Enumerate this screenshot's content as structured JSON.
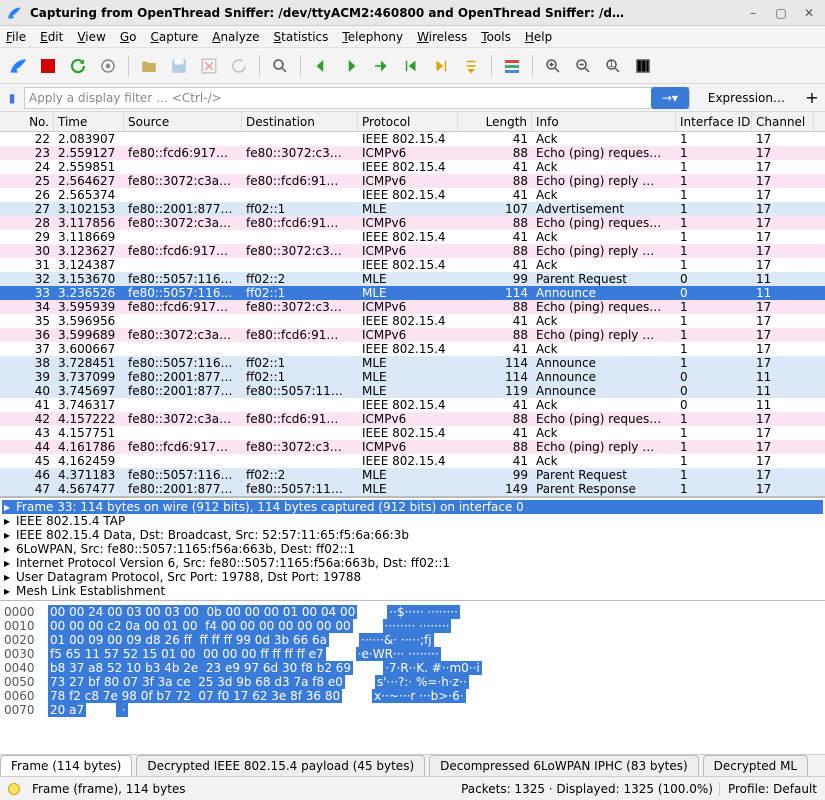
{
  "title": "Capturing from OpenThread Sniffer: /dev/ttyACM2:460800 and OpenThread Sniffer: /d…",
  "menu": [
    "File",
    "Edit",
    "View",
    "Go",
    "Capture",
    "Analyze",
    "Statistics",
    "Telephony",
    "Wireless",
    "Tools",
    "Help"
  ],
  "filter_placeholder": "Apply a display filter … <Ctrl-/>",
  "filter_expr": "Expression…",
  "columns": [
    "No.",
    "Time",
    "Source",
    "Destination",
    "Protocol",
    "Length",
    "Info",
    "Interface ID",
    "Channel"
  ],
  "rows": [
    {
      "bg": "white",
      "no": "22",
      "time": "2.083907",
      "src": "",
      "dst": "",
      "proto": "IEEE 802.15.4",
      "len": "41",
      "info": "Ack",
      "if": "1",
      "ch": "17"
    },
    {
      "bg": "pink",
      "no": "23",
      "time": "2.559127",
      "src": "fe80::fcd6:917…",
      "dst": "fe80::3072:c3…",
      "proto": "ICMPv6",
      "len": "88",
      "info": "Echo (ping) reques…",
      "if": "1",
      "ch": "17"
    },
    {
      "bg": "white",
      "no": "24",
      "time": "2.559851",
      "src": "",
      "dst": "",
      "proto": "IEEE 802.15.4",
      "len": "41",
      "info": "Ack",
      "if": "1",
      "ch": "17"
    },
    {
      "bg": "pink",
      "no": "25",
      "time": "2.564627",
      "src": "fe80::3072:c3a…",
      "dst": "fe80::fcd6:91…",
      "proto": "ICMPv6",
      "len": "88",
      "info": "Echo (ping) reply …",
      "if": "1",
      "ch": "17"
    },
    {
      "bg": "white",
      "no": "26",
      "time": "2.565374",
      "src": "",
      "dst": "",
      "proto": "IEEE 802.15.4",
      "len": "41",
      "info": "Ack",
      "if": "1",
      "ch": "17"
    },
    {
      "bg": "blue",
      "no": "27",
      "time": "3.102153",
      "src": "fe80::2001:877…",
      "dst": "ff02::1",
      "proto": "MLE",
      "len": "107",
      "info": "Advertisement",
      "if": "1",
      "ch": "17"
    },
    {
      "bg": "pink",
      "no": "28",
      "time": "3.117856",
      "src": "fe80::3072:c3a…",
      "dst": "fe80::fcd6:91…",
      "proto": "ICMPv6",
      "len": "88",
      "info": "Echo (ping) reques…",
      "if": "1",
      "ch": "17"
    },
    {
      "bg": "white",
      "no": "29",
      "time": "3.118669",
      "src": "",
      "dst": "",
      "proto": "IEEE 802.15.4",
      "len": "41",
      "info": "Ack",
      "if": "1",
      "ch": "17"
    },
    {
      "bg": "pink",
      "no": "30",
      "time": "3.123627",
      "src": "fe80::fcd6:917…",
      "dst": "fe80::3072:c3…",
      "proto": "ICMPv6",
      "len": "88",
      "info": "Echo (ping) reply …",
      "if": "1",
      "ch": "17"
    },
    {
      "bg": "white",
      "no": "31",
      "time": "3.124387",
      "src": "",
      "dst": "",
      "proto": "IEEE 802.15.4",
      "len": "41",
      "info": "Ack",
      "if": "1",
      "ch": "17"
    },
    {
      "bg": "blue",
      "no": "32",
      "time": "3.153670",
      "src": "fe80::5057:116…",
      "dst": "ff02::2",
      "proto": "MLE",
      "len": "99",
      "info": "Parent Request",
      "if": "0",
      "ch": "11"
    },
    {
      "bg": "sel",
      "no": "33",
      "time": "3.236526",
      "src": "fe80::5057:116…",
      "dst": "ff02::1",
      "proto": "MLE",
      "len": "114",
      "info": "Announce",
      "if": "0",
      "ch": "11"
    },
    {
      "bg": "pink",
      "no": "34",
      "time": "3.595939",
      "src": "fe80::fcd6:917…",
      "dst": "fe80::3072:c3…",
      "proto": "ICMPv6",
      "len": "88",
      "info": "Echo (ping) reques…",
      "if": "1",
      "ch": "17"
    },
    {
      "bg": "white",
      "no": "35",
      "time": "3.596956",
      "src": "",
      "dst": "",
      "proto": "IEEE 802.15.4",
      "len": "41",
      "info": "Ack",
      "if": "1",
      "ch": "17"
    },
    {
      "bg": "pink",
      "no": "36",
      "time": "3.599689",
      "src": "fe80::3072:c3a…",
      "dst": "fe80::fcd6:91…",
      "proto": "ICMPv6",
      "len": "88",
      "info": "Echo (ping) reply …",
      "if": "1",
      "ch": "17"
    },
    {
      "bg": "white",
      "no": "37",
      "time": "3.600667",
      "src": "",
      "dst": "",
      "proto": "IEEE 802.15.4",
      "len": "41",
      "info": "Ack",
      "if": "1",
      "ch": "17"
    },
    {
      "bg": "blue",
      "no": "38",
      "time": "3.728451",
      "src": "fe80::5057:116…",
      "dst": "ff02::1",
      "proto": "MLE",
      "len": "114",
      "info": "Announce",
      "if": "1",
      "ch": "17"
    },
    {
      "bg": "blue",
      "no": "39",
      "time": "3.737099",
      "src": "fe80::2001:877…",
      "dst": "ff02::1",
      "proto": "MLE",
      "len": "114",
      "info": "Announce",
      "if": "0",
      "ch": "11"
    },
    {
      "bg": "blue",
      "no": "40",
      "time": "3.745697",
      "src": "fe80::2001:877…",
      "dst": "fe80::5057:11…",
      "proto": "MLE",
      "len": "119",
      "info": "Announce",
      "if": "0",
      "ch": "11"
    },
    {
      "bg": "white",
      "no": "41",
      "time": "3.746317",
      "src": "",
      "dst": "",
      "proto": "IEEE 802.15.4",
      "len": "41",
      "info": "Ack",
      "if": "0",
      "ch": "11"
    },
    {
      "bg": "pink",
      "no": "42",
      "time": "4.157222",
      "src": "fe80::3072:c3a…",
      "dst": "fe80::fcd6:91…",
      "proto": "ICMPv6",
      "len": "88",
      "info": "Echo (ping) reques…",
      "if": "1",
      "ch": "17"
    },
    {
      "bg": "white",
      "no": "43",
      "time": "4.157751",
      "src": "",
      "dst": "",
      "proto": "IEEE 802.15.4",
      "len": "41",
      "info": "Ack",
      "if": "1",
      "ch": "17"
    },
    {
      "bg": "pink",
      "no": "44",
      "time": "4.161786",
      "src": "fe80::fcd6:917…",
      "dst": "fe80::3072:c3…",
      "proto": "ICMPv6",
      "len": "88",
      "info": "Echo (ping) reply …",
      "if": "1",
      "ch": "17"
    },
    {
      "bg": "white",
      "no": "45",
      "time": "4.162459",
      "src": "",
      "dst": "",
      "proto": "IEEE 802.15.4",
      "len": "41",
      "info": "Ack",
      "if": "1",
      "ch": "17"
    },
    {
      "bg": "blue",
      "no": "46",
      "time": "4.371183",
      "src": "fe80::5057:116…",
      "dst": "ff02::2",
      "proto": "MLE",
      "len": "99",
      "info": "Parent Request",
      "if": "1",
      "ch": "17"
    },
    {
      "bg": "blue",
      "no": "47",
      "time": "4.567477",
      "src": "fe80::2001:877…",
      "dst": "fe80::5057:11…",
      "proto": "MLE",
      "len": "149",
      "info": "Parent Response",
      "if": "1",
      "ch": "17"
    }
  ],
  "details": [
    {
      "sel": true,
      "txt": "Frame 33: 114 bytes on wire (912 bits), 114 bytes captured (912 bits) on interface 0"
    },
    {
      "sel": false,
      "txt": "IEEE 802.15.4 TAP"
    },
    {
      "sel": false,
      "txt": "IEEE 802.15.4 Data, Dst: Broadcast, Src: 52:57:11:65:f5:6a:66:3b"
    },
    {
      "sel": false,
      "txt": "6LoWPAN, Src: fe80::5057:1165:f56a:663b, Dest: ff02::1"
    },
    {
      "sel": false,
      "txt": "Internet Protocol Version 6, Src: fe80::5057:1165:f56a:663b, Dst: ff02::1"
    },
    {
      "sel": false,
      "txt": "User Datagram Protocol, Src Port: 19788, Dst Port: 19788"
    },
    {
      "sel": false,
      "txt": "Mesh Link Establishment"
    }
  ],
  "hex": [
    {
      "off": "0000",
      "b": "00 00 24 00 03 00 03 00  0b 00 00 00 01 00 04 00",
      "a": "··$····· ········"
    },
    {
      "off": "0010",
      "b": "00 00 00 c2 0a 00 01 00  f4 00 00 00 00 00 00 00",
      "a": "········ ········"
    },
    {
      "off": "0020",
      "b": "01 00 09 00 09 d8 26 ff  ff ff ff 99 0d 3b 66 6a",
      "a": "······&· ·····;fj"
    },
    {
      "off": "0030",
      "b": "f5 65 11 57 52 15 01 00  00 00 00 ff ff ff ff e7",
      "a": "·e·WR··· ········"
    },
    {
      "off": "0040",
      "b": "b8 37 a8 52 10 b3 4b 2e  23 e9 97 6d 30 f8 b2 69",
      "a": "·7·R··K. #··m0··i"
    },
    {
      "off": "0050",
      "b": "73 27 bf 80 07 3f 3a ce  25 3d 9b 68 d3 7a f8 e0",
      "a": "s'···?:· %=·h·z··"
    },
    {
      "off": "0060",
      "b": "78 f2 c8 7e 98 0f b7 72  07 f0 17 62 3e 8f 36 80",
      "a": "x··~···r ···b>·6·"
    },
    {
      "off": "0070",
      "b": "20 a7",
      "a": " ·"
    }
  ],
  "data_tabs": [
    "Frame (114 bytes)",
    "Decrypted IEEE 802.15.4 payload (45 bytes)",
    "Decompressed 6LoWPAN IPHC (83 bytes)",
    "Decrypted ML"
  ],
  "status_left": "Frame (frame), 114 bytes",
  "status_pkts": "Packets: 1325 · Displayed: 1325 (100.0%)",
  "status_profile": "Profile: Default"
}
